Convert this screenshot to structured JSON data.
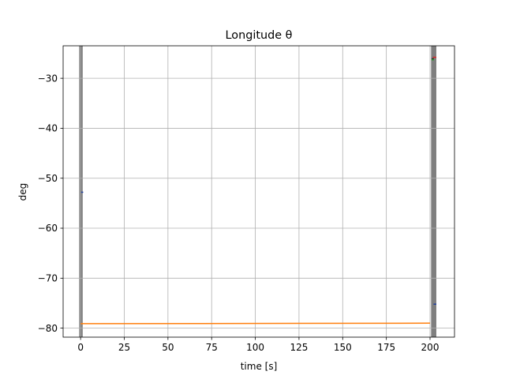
{
  "chart_data": {
    "type": "line",
    "title": "Longitude θ",
    "xlabel": "time [s]",
    "ylabel": "deg",
    "xlim": [
      -10,
      214
    ],
    "ylim": [
      -81.8,
      -23.5
    ],
    "xticks": [
      0,
      25,
      50,
      75,
      100,
      125,
      150,
      175,
      200
    ],
    "yticks": [
      -80,
      -70,
      -60,
      -50,
      -40,
      -30
    ],
    "xtick_labels": [
      "0",
      "25",
      "50",
      "75",
      "100",
      "125",
      "150",
      "175",
      "200"
    ],
    "ytick_labels": [
      "−80",
      "−70",
      "−60",
      "−50",
      "−40",
      "−30"
    ],
    "grid": true,
    "shaded_bands": [
      {
        "x": [
          -0.8,
          1.2
        ],
        "color": "#7f7f7f"
      },
      {
        "x": [
          200.6,
          203.6
        ],
        "color": "#7f7f7f"
      }
    ],
    "series": [
      {
        "color": "#ff7f0e",
        "x": [
          0,
          200
        ],
        "y": [
          -79.1,
          -79.0
        ]
      },
      {
        "color": "#1f3f9f",
        "x": [
          0.3,
          1.5
        ],
        "y": [
          -52.8,
          -52.8
        ]
      },
      {
        "color": "#1f3f9f",
        "x": [
          202.0,
          203.6
        ],
        "y": [
          -75.2,
          -75.2
        ]
      },
      {
        "color": "#d62728",
        "x": [
          201.6,
          203.6
        ],
        "y": [
          -25.8,
          -25.8
        ]
      },
      {
        "color": "#2a2a2a",
        "x": [
          200.9,
          202.2
        ],
        "y": [
          -26.1,
          -26.1
        ]
      },
      {
        "color": "#2ca02c",
        "x": [
          200.9,
          202.2
        ],
        "y": [
          -26.3,
          -26.3
        ]
      }
    ]
  }
}
